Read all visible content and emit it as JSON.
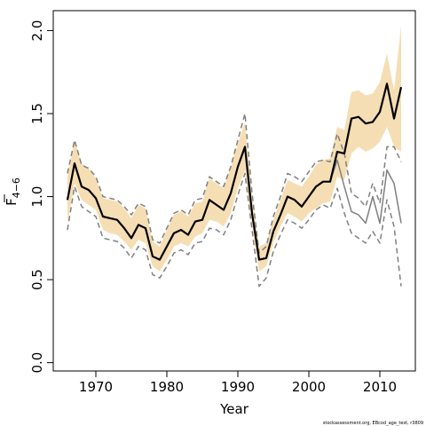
{
  "chart_data": {
    "type": "line",
    "xlabel": "Year",
    "ylabel": "F",
    "ylabel_subscript": "4−6",
    "xlim": [
      1964,
      2015
    ],
    "ylim": [
      -0.05,
      2.12
    ],
    "x_ticks": [
      1970,
      1980,
      1990,
      2000,
      2010
    ],
    "x_tick_labels": [
      "1970",
      "1980",
      "1990",
      "2000",
      "2010"
    ],
    "y_ticks": [
      0.0,
      0.5,
      1.0,
      1.5,
      2.0
    ],
    "y_tick_labels": [
      "0.0",
      "0.5",
      "1.0",
      "1.5",
      "2.0"
    ],
    "grid": false,
    "credit": "stockassessment.org, EBcod_age_test, r3809",
    "colors": {
      "band": "#f5deb3",
      "estimate": "#000000",
      "retro": "#808080",
      "bounds": "#808080"
    },
    "series": [
      {
        "type": "area",
        "role": "confidence-band",
        "x": [
          1966,
          1967,
          1968,
          1969,
          1970,
          1971,
          1972,
          1973,
          1974,
          1975,
          1976,
          1977,
          1978,
          1979,
          1980,
          1981,
          1982,
          1983,
          1984,
          1985,
          1986,
          1987,
          1988,
          1989,
          1990,
          1991,
          1992,
          1993,
          1994,
          1995,
          1996,
          1997,
          1998,
          1999,
          2000,
          2001,
          2002,
          2003,
          2004,
          2005,
          2006,
          2007,
          2008,
          2009,
          2010,
          2011,
          2012,
          2013
        ],
        "lower": [
          0.84,
          1.08,
          0.98,
          0.95,
          0.92,
          0.8,
          0.78,
          0.77,
          0.73,
          0.68,
          0.74,
          0.72,
          0.58,
          0.55,
          0.62,
          0.7,
          0.72,
          0.7,
          0.76,
          0.78,
          0.86,
          0.85,
          0.82,
          0.9,
          1.05,
          1.16,
          0.82,
          0.55,
          0.58,
          0.72,
          0.82,
          0.9,
          0.88,
          0.85,
          0.9,
          0.93,
          0.96,
          0.97,
          1.12,
          1.1,
          1.26,
          1.3,
          1.27,
          1.29,
          1.33,
          1.42,
          1.3,
          1.27
        ],
        "upper": [
          1.12,
          1.34,
          1.2,
          1.17,
          1.11,
          0.99,
          0.98,
          0.97,
          0.93,
          0.87,
          0.95,
          0.93,
          0.73,
          0.7,
          0.8,
          0.89,
          0.91,
          0.88,
          0.96,
          0.97,
          1.11,
          1.08,
          1.05,
          1.18,
          1.32,
          1.45,
          1.0,
          0.7,
          0.72,
          0.86,
          0.98,
          1.1,
          1.08,
          1.06,
          1.12,
          1.19,
          1.22,
          1.23,
          1.42,
          1.4,
          1.63,
          1.64,
          1.61,
          1.62,
          1.69,
          1.86,
          1.64,
          2.03
        ]
      },
      {
        "type": "line",
        "role": "estimate",
        "x": [
          1966,
          1967,
          1968,
          1969,
          1970,
          1971,
          1972,
          1973,
          1974,
          1975,
          1976,
          1977,
          1978,
          1979,
          1980,
          1981,
          1982,
          1983,
          1984,
          1985,
          1986,
          1987,
          1988,
          1989,
          1990,
          1991,
          1992,
          1993,
          1994,
          1995,
          1996,
          1997,
          1998,
          1999,
          2000,
          2001,
          2002,
          2003,
          2004,
          2005,
          2006,
          2007,
          2008,
          2009,
          2010,
          2011,
          2012,
          2013
        ],
        "values": [
          0.98,
          1.2,
          1.06,
          1.04,
          0.99,
          0.88,
          0.87,
          0.86,
          0.81,
          0.75,
          0.83,
          0.81,
          0.64,
          0.62,
          0.7,
          0.78,
          0.8,
          0.77,
          0.85,
          0.86,
          0.98,
          0.95,
          0.92,
          1.02,
          1.18,
          1.3,
          0.9,
          0.62,
          0.63,
          0.79,
          0.89,
          1.0,
          0.98,
          0.94,
          1.0,
          1.06,
          1.09,
          1.09,
          1.27,
          1.26,
          1.47,
          1.48,
          1.44,
          1.45,
          1.51,
          1.68,
          1.47,
          1.66
        ]
      },
      {
        "type": "line",
        "role": "retrospective-estimate",
        "x": [
          2003,
          2004,
          2005,
          2006,
          2007,
          2008,
          2009,
          2010,
          2011,
          2012,
          2013
        ],
        "values": [
          1.09,
          1.22,
          1.06,
          0.91,
          0.89,
          0.84,
          1.0,
          0.84,
          1.16,
          1.08,
          0.84
        ]
      },
      {
        "type": "line",
        "role": "lower-bound",
        "style": "dashed",
        "x": [
          1966,
          1967,
          1968,
          1969,
          1970,
          1971,
          1972,
          1973,
          1974,
          1975,
          1976,
          1977,
          1978,
          1979,
          1980,
          1981,
          1982,
          1983,
          1984,
          1985,
          1986,
          1987,
          1988,
          1989,
          1990,
          1991,
          1992,
          1993,
          1994,
          1995,
          1996,
          1997,
          1998,
          1999,
          2000,
          2001,
          2002,
          2003,
          2004,
          2005,
          2006,
          2007,
          2008,
          2009,
          2010,
          2011,
          2012,
          2013
        ],
        "values": [
          0.8,
          1.06,
          0.94,
          0.91,
          0.88,
          0.75,
          0.74,
          0.73,
          0.69,
          0.63,
          0.7,
          0.68,
          0.53,
          0.51,
          0.58,
          0.66,
          0.68,
          0.65,
          0.72,
          0.73,
          0.81,
          0.8,
          0.77,
          0.86,
          1.01,
          1.14,
          0.8,
          0.46,
          0.51,
          0.67,
          0.77,
          0.86,
          0.84,
          0.81,
          0.86,
          0.92,
          0.95,
          0.93,
          1.05,
          0.9,
          0.78,
          0.75,
          0.72,
          0.79,
          0.72,
          0.98,
          0.82,
          0.46
        ]
      },
      {
        "type": "line",
        "role": "upper-bound",
        "style": "dashed",
        "x": [
          1966,
          1967,
          1968,
          1969,
          1970,
          1971,
          1972,
          1973,
          1974,
          1975,
          1976,
          1977,
          1978,
          1979,
          1980,
          1981,
          1982,
          1983,
          1984,
          1985,
          1986,
          1987,
          1988,
          1989,
          1990,
          1991,
          1992,
          1993,
          1994,
          1995,
          1996,
          1997,
          1998,
          1999,
          2000,
          2001,
          2002,
          2003,
          2004,
          2005,
          2006,
          2007,
          2008,
          2009,
          2010,
          2011,
          2012,
          2013
        ],
        "values": [
          1.14,
          1.34,
          1.19,
          1.17,
          1.12,
          1.0,
          0.99,
          0.98,
          0.94,
          0.89,
          0.96,
          0.94,
          0.74,
          0.72,
          0.81,
          0.9,
          0.92,
          0.89,
          0.98,
          0.99,
          1.12,
          1.09,
          1.06,
          1.18,
          1.34,
          1.5,
          1.02,
          0.66,
          0.7,
          0.88,
          1.0,
          1.14,
          1.12,
          1.09,
          1.15,
          1.21,
          1.22,
          1.21,
          1.38,
          1.26,
          1.02,
          0.99,
          0.94,
          1.08,
          0.96,
          1.3,
          1.3,
          1.21
        ]
      }
    ]
  }
}
